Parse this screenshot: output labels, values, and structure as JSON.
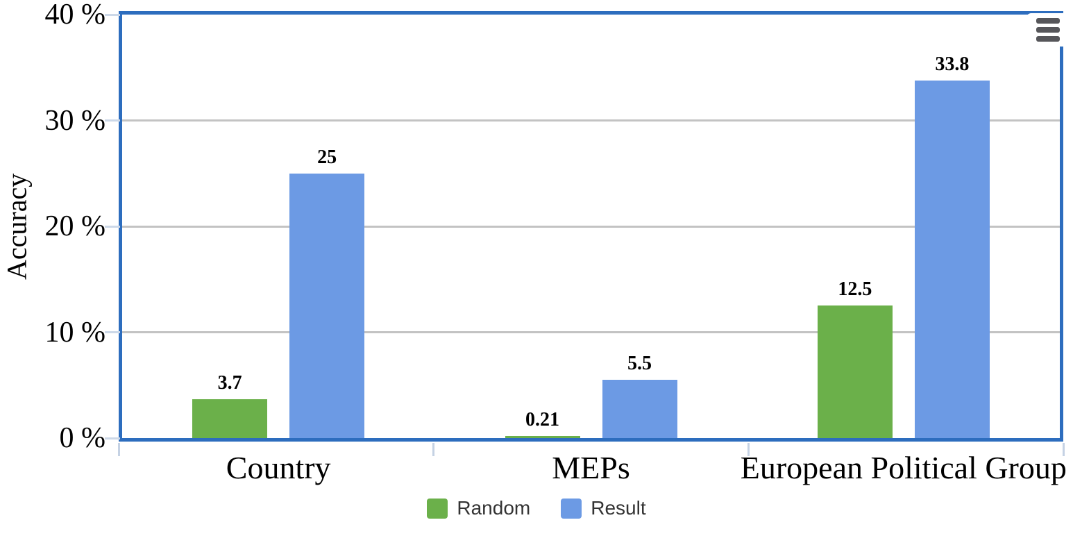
{
  "chart_data": {
    "type": "bar",
    "title": "",
    "xlabel": "",
    "ylabel": "Accuracy",
    "categories": [
      "Country",
      "MEPs",
      "European Political Group"
    ],
    "series": [
      {
        "name": "Random",
        "color": "#6bb04a",
        "values": [
          3.7,
          0.21,
          12.5
        ],
        "value_labels": [
          "3.7",
          "0.21",
          "12.5"
        ]
      },
      {
        "name": "Result",
        "color": "#6c9ae4",
        "values": [
          25,
          5.5,
          33.8
        ],
        "value_labels": [
          "25",
          "5.5",
          "33.8"
        ]
      }
    ],
    "ylim": [
      0,
      40
    ],
    "yticks": [
      0,
      10,
      20,
      30,
      40
    ],
    "ytick_labels": [
      "0 %",
      "10 %",
      "20 %",
      "30 %",
      "40 %"
    ],
    "grid": true,
    "legend_position": "bottom"
  },
  "menu": {
    "icon": "hamburger-menu-icon"
  },
  "colors": {
    "frame": "#2d6dbe",
    "grid": "#c3c3c3",
    "axis_tick": "#ccd8e8",
    "boundary_tick": "#c5d2e4",
    "legend_text": "#333333",
    "menu_icon": "#56565a"
  }
}
